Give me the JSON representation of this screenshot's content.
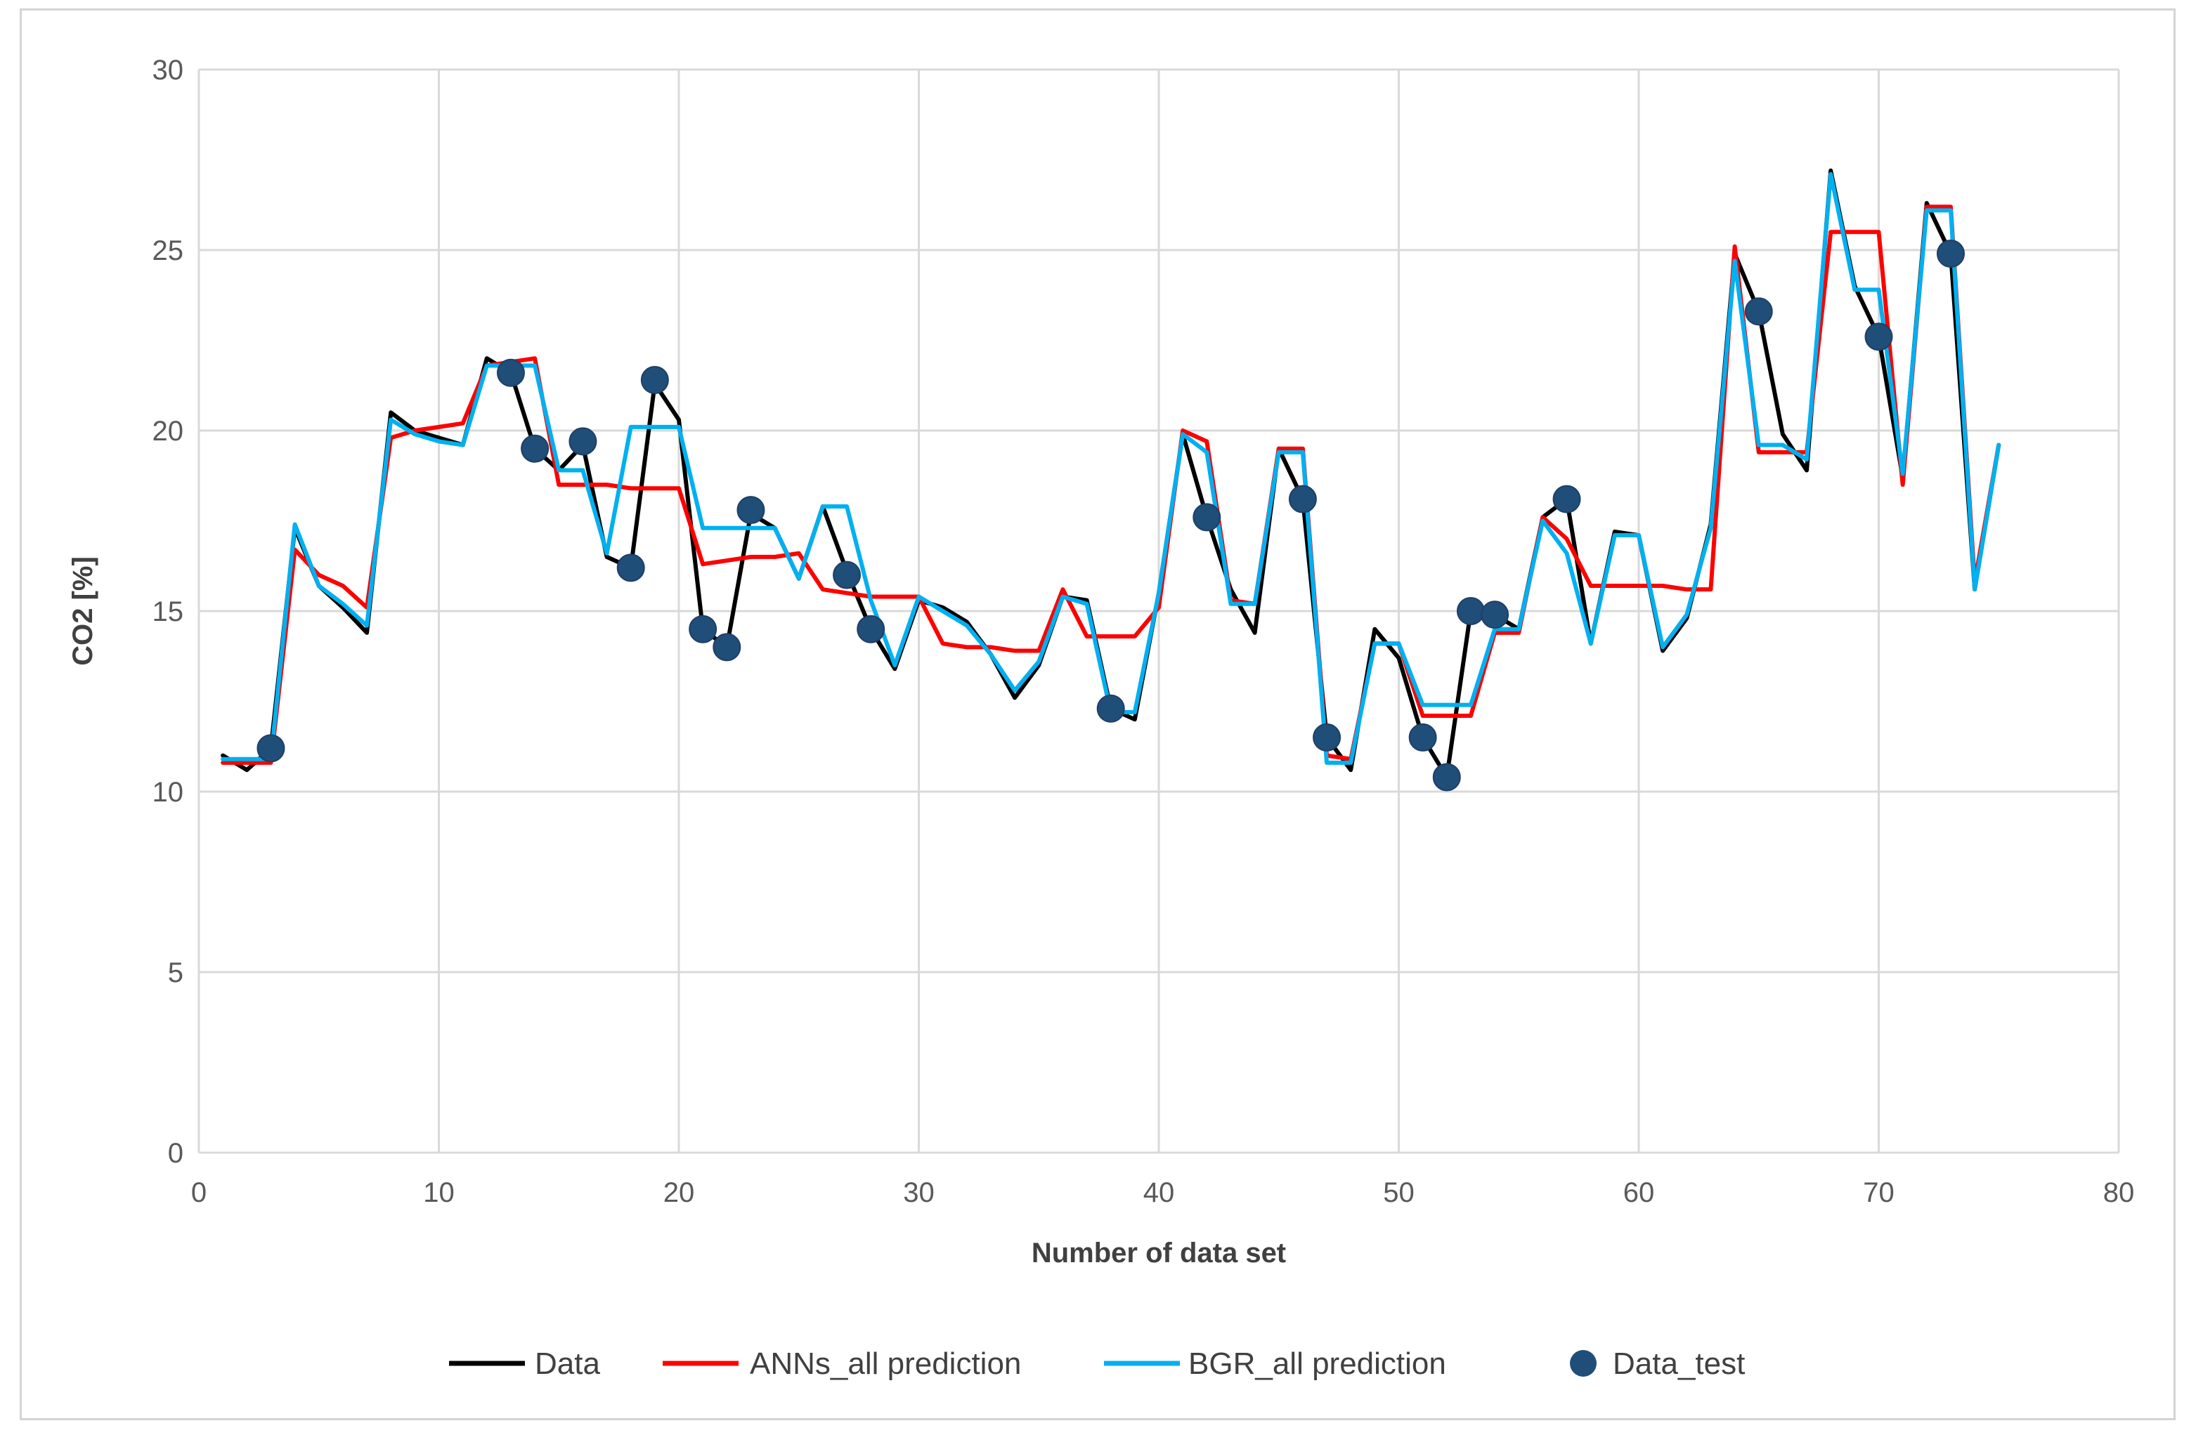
{
  "chart_data": {
    "type": "line",
    "title": "",
    "xlabel": "Number of data set",
    "ylabel": "CO2 [%]",
    "xlim": [
      0,
      80
    ],
    "ylim": [
      0,
      30
    ],
    "xticks": [
      0,
      10,
      20,
      30,
      40,
      50,
      60,
      70,
      80
    ],
    "yticks": [
      0,
      5,
      10,
      15,
      20,
      25,
      30
    ],
    "grid": true,
    "legend_position": "bottom",
    "x": [
      1,
      2,
      3,
      4,
      5,
      6,
      7,
      8,
      9,
      10,
      11,
      12,
      13,
      14,
      15,
      16,
      17,
      18,
      19,
      20,
      21,
      22,
      23,
      24,
      25,
      26,
      27,
      28,
      29,
      30,
      31,
      32,
      33,
      34,
      35,
      36,
      37,
      38,
      39,
      40,
      41,
      42,
      43,
      44,
      45,
      46,
      47,
      48,
      49,
      50,
      51,
      52,
      53,
      54,
      55,
      56,
      57,
      58,
      59,
      60,
      61,
      62,
      63,
      64,
      65,
      66,
      67,
      68,
      69,
      70,
      71,
      72,
      73,
      74,
      75
    ],
    "series": [
      {
        "name": "Data",
        "color": "#000000",
        "style": "line",
        "values": [
          11,
          10.6,
          11.2,
          17.3,
          15.7,
          15.1,
          14.4,
          20.5,
          20,
          19.8,
          19.6,
          22,
          21.6,
          19.5,
          18.9,
          19.6,
          16.5,
          16.2,
          21.3,
          20.3,
          14.5,
          14,
          17.7,
          17.3,
          15.9,
          17.9,
          16.1,
          14.5,
          13.4,
          15.3,
          15.1,
          14.7,
          13.8,
          12.6,
          13.5,
          15.4,
          15.3,
          12.3,
          12,
          15.5,
          19.9,
          17.6,
          15.6,
          14.4,
          19.5,
          18.1,
          11.5,
          10.6,
          14.5,
          13.7,
          11.5,
          10.4,
          15,
          14.9,
          14.5,
          17.6,
          18.1,
          14.1,
          17.2,
          17.1,
          13.9,
          14.8,
          17.4,
          24.9,
          23.3,
          19.9,
          18.9,
          27.2,
          24,
          22.6,
          18.7,
          26.3,
          24.9,
          15.6,
          19.6
        ]
      },
      {
        "name": "ANNs_all prediction",
        "color": "#ff0000",
        "style": "line",
        "values": [
          10.8,
          10.8,
          10.8,
          16.7,
          16,
          15.7,
          15.1,
          19.8,
          20,
          20.1,
          20.2,
          21.8,
          21.9,
          22,
          18.5,
          18.5,
          18.5,
          18.4,
          18.4,
          18.4,
          16.3,
          16.4,
          16.5,
          16.5,
          16.6,
          15.6,
          15.5,
          15.4,
          15.4,
          15.4,
          14.1,
          14,
          14,
          13.9,
          13.9,
          15.6,
          14.3,
          14.3,
          14.3,
          15.1,
          20,
          19.7,
          15.3,
          15.2,
          19.5,
          19.5,
          11,
          10.9,
          14.1,
          14.1,
          12.1,
          12.1,
          12.1,
          14.4,
          14.4,
          17.6,
          17,
          15.7,
          15.7,
          15.7,
          15.7,
          15.6,
          15.6,
          25.1,
          19.4,
          19.4,
          19.4,
          25.5,
          25.5,
          25.5,
          18.5,
          26.2,
          26.2,
          15.8,
          19.6
        ]
      },
      {
        "name": "BGR_all prediction",
        "color": "#00b0f0",
        "style": "line",
        "values": [
          10.9,
          10.9,
          10.9,
          17.4,
          15.7,
          15.2,
          14.6,
          20.3,
          19.9,
          19.7,
          19.6,
          21.8,
          21.8,
          21.8,
          18.9,
          18.9,
          16.6,
          20.1,
          20.1,
          20.1,
          17.3,
          17.3,
          17.3,
          17.3,
          15.9,
          17.9,
          17.9,
          15.3,
          13.5,
          15.4,
          15,
          14.6,
          13.8,
          12.8,
          13.6,
          15.4,
          15.2,
          12.2,
          12.2,
          15.5,
          19.9,
          19.4,
          15.2,
          15.2,
          19.4,
          19.4,
          10.8,
          10.8,
          14.1,
          14.1,
          12.4,
          12.4,
          12.4,
          14.5,
          14.5,
          17.5,
          16.6,
          14.1,
          17.1,
          17.1,
          14,
          14.9,
          17.3,
          24.7,
          19.6,
          19.6,
          19.2,
          27.1,
          23.9,
          23.9,
          18.8,
          26.1,
          26.1,
          15.6,
          19.6
        ]
      },
      {
        "name": "Data_test",
        "color": "#1f4e79",
        "style": "scatter",
        "points": [
          [
            3,
            11.2
          ],
          [
            13,
            21.6
          ],
          [
            14,
            19.5
          ],
          [
            16,
            19.7
          ],
          [
            18,
            16.2
          ],
          [
            19,
            21.4
          ],
          [
            21,
            14.5
          ],
          [
            22,
            14
          ],
          [
            23,
            17.8
          ],
          [
            27,
            16
          ],
          [
            28,
            14.5
          ],
          [
            38,
            12.3
          ],
          [
            42,
            17.6
          ],
          [
            46,
            18.1
          ],
          [
            47,
            11.5
          ],
          [
            51,
            11.5
          ],
          [
            52,
            10.4
          ],
          [
            53,
            15
          ],
          [
            54,
            14.9
          ],
          [
            57,
            18.1
          ],
          [
            65,
            23.3
          ],
          [
            70,
            22.6
          ],
          [
            73,
            24.9
          ]
        ]
      }
    ]
  }
}
